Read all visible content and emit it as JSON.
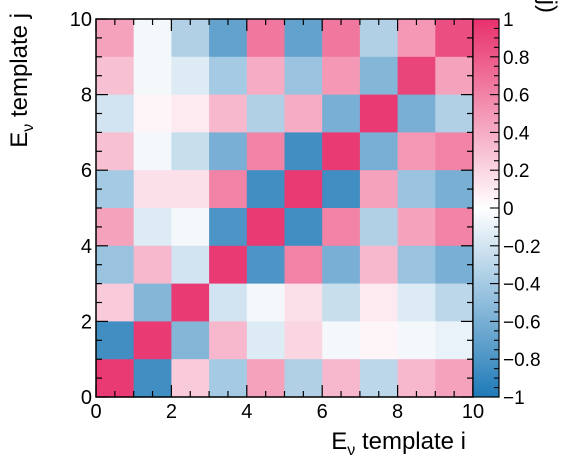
{
  "chart_data": {
    "type": "heatmap",
    "title": "",
    "xlabel": "E",
    "xlabel_sub": "ν",
    "xlabel_rest": " template i",
    "ylabel": "E",
    "ylabel_sub": "ν",
    "ylabel_rest": " template j",
    "xlim": [
      0,
      10
    ],
    "ylim": [
      0,
      10
    ],
    "x_ticks": [
      {
        "value": 0,
        "label": "0"
      },
      {
        "value": 2,
        "label": "2"
      },
      {
        "value": 4,
        "label": "4"
      },
      {
        "value": 6,
        "label": "6"
      },
      {
        "value": 8,
        "label": "8"
      },
      {
        "value": 10,
        "label": "10"
      }
    ],
    "y_ticks": [
      {
        "value": 0,
        "label": "0"
      },
      {
        "value": 2,
        "label": "2"
      },
      {
        "value": 4,
        "label": "4"
      },
      {
        "value": 6,
        "label": "6"
      },
      {
        "value": 8,
        "label": "8"
      },
      {
        "value": 10,
        "label": "10"
      }
    ],
    "colorbar": {
      "title": "corr(i,j)",
      "range": [
        -1,
        1
      ],
      "ticks": [
        {
          "value": 1,
          "label": "1"
        },
        {
          "value": 0.8,
          "label": "0.8"
        },
        {
          "value": 0.6,
          "label": "0.6"
        },
        {
          "value": 0.4,
          "label": "0.4"
        },
        {
          "value": 0.2,
          "label": "0.2"
        },
        {
          "value": 0,
          "label": "0"
        },
        {
          "value": -0.2,
          "label": "−0.2"
        },
        {
          "value": -0.4,
          "label": "−0.4"
        },
        {
          "value": -0.6,
          "label": "−0.6"
        },
        {
          "value": -0.8,
          "label": "−0.8"
        },
        {
          "value": -1,
          "label": "−1"
        }
      ],
      "colors": {
        "negative": "#1f7ab8",
        "zero": "#ffffff",
        "positive": "#e8306c"
      }
    },
    "bins": {
      "nx": 10,
      "ny": 10
    },
    "z_rows_top_to_bottom": [
      [
        0.45,
        -0.05,
        -0.35,
        -0.7,
        0.65,
        -0.7,
        0.65,
        -0.35,
        0.5,
        0.85
      ],
      [
        0.3,
        -0.05,
        -0.15,
        -0.4,
        0.4,
        -0.45,
        0.5,
        -0.55,
        0.9,
        0.45
      ],
      [
        -0.2,
        0.05,
        0.1,
        0.35,
        -0.35,
        0.4,
        -0.6,
        0.95,
        -0.6,
        -0.35
      ],
      [
        0.3,
        -0.05,
        -0.25,
        -0.6,
        0.6,
        -0.85,
        0.95,
        -0.6,
        0.5,
        0.6
      ],
      [
        -0.4,
        0.15,
        0.15,
        0.6,
        -0.85,
        0.95,
        -0.85,
        0.45,
        -0.45,
        -0.6
      ],
      [
        0.45,
        -0.15,
        -0.05,
        -0.8,
        0.95,
        -0.85,
        0.6,
        -0.35,
        0.45,
        0.6
      ],
      [
        -0.45,
        0.35,
        -0.2,
        0.95,
        -0.8,
        0.6,
        -0.6,
        0.35,
        -0.45,
        -0.6
      ],
      [
        0.25,
        -0.55,
        0.95,
        -0.2,
        -0.05,
        0.15,
        -0.25,
        0.1,
        -0.15,
        -0.3
      ],
      [
        -0.85,
        0.95,
        -0.55,
        0.35,
        -0.15,
        0.2,
        -0.05,
        0.05,
        -0.05,
        -0.1
      ],
      [
        0.95,
        -0.85,
        0.25,
        -0.4,
        0.45,
        -0.35,
        0.35,
        -0.3,
        0.35,
        0.45
      ]
    ]
  }
}
